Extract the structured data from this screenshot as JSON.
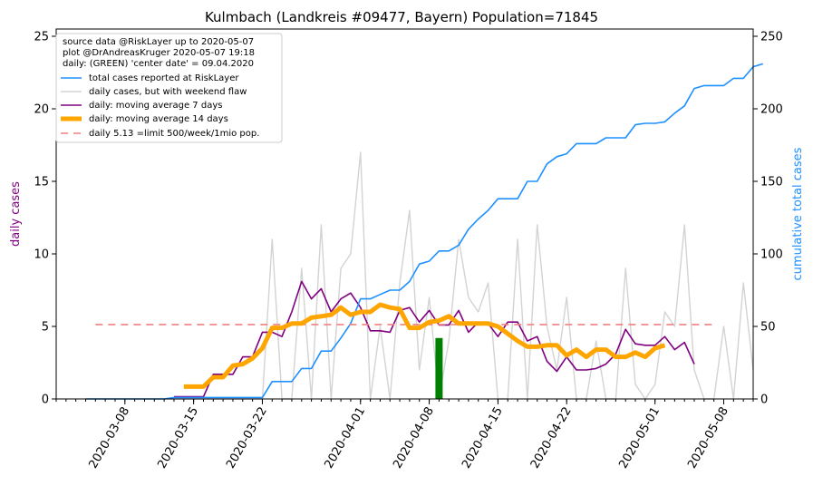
{
  "chart_data": {
    "type": "line",
    "title": "Kulmbach (Landkreis #09477, Bayern) Population=71845",
    "ylabel_left": "daily cases",
    "ylabel_right": "cumulative total cases",
    "ylim_left": [
      0,
      25.5
    ],
    "ylim_right": [
      0,
      255
    ],
    "yticks_left": [
      0,
      5,
      10,
      15,
      20,
      25
    ],
    "yticks_right": [
      0,
      50,
      100,
      150,
      200,
      250
    ],
    "x_start": "2020-03-01",
    "x_end": "2020-05-11",
    "xticks": [
      "2020-03-08",
      "2020-03-15",
      "2020-03-22",
      "2020-04-01",
      "2020-04-08",
      "2020-04-15",
      "2020-04-22",
      "2020-05-01",
      "2020-05-08"
    ],
    "legend_position": "top-left",
    "legend_header": [
      "source data @RiskLayer up to 2020-05-07",
      "plot @DrAndreasKruger 2020-05-07 19:18",
      "daily: (GREEN) 'center date' = 09.04.2020"
    ],
    "center_date_bar": {
      "date": "2020-04-09",
      "value": 4.2,
      "color": "#008000"
    },
    "limit_line": {
      "value": 5.13,
      "start": "2020-03-05",
      "end": "2020-05-07",
      "color": "#f08080"
    },
    "series": [
      {
        "name": "total cases reported at RiskLayer",
        "axis": "right",
        "color": "#1e90ff",
        "width": 1.6,
        "start": "2020-03-04",
        "values": [
          0,
          0,
          0,
          0,
          0,
          0,
          0,
          0,
          0,
          1,
          1,
          1,
          1,
          1,
          1,
          1,
          1,
          1,
          1,
          12,
          12,
          12,
          21,
          21,
          33,
          33,
          42,
          52,
          69,
          69,
          72,
          75,
          75,
          81,
          93,
          95,
          102,
          102,
          106,
          117,
          124,
          130,
          138,
          138,
          138,
          150,
          150,
          162,
          167,
          169,
          176,
          176,
          176,
          180,
          180,
          180,
          189,
          190,
          190,
          191,
          197,
          202,
          214,
          216,
          216,
          216,
          221,
          221,
          229,
          231
        ]
      },
      {
        "name": "daily cases, but with weekend flaw",
        "axis": "left",
        "color": "#d3d3d3",
        "width": 1.4,
        "start": "2020-03-04",
        "values": [
          0,
          0,
          0,
          0,
          0,
          0,
          0,
          0,
          0,
          0,
          0,
          0,
          0,
          0,
          0,
          0,
          0,
          0,
          0,
          11,
          0,
          0,
          9,
          0,
          12,
          0,
          9,
          10,
          17,
          0,
          5,
          0,
          8,
          13,
          2,
          7,
          0,
          4,
          11,
          7,
          6,
          8,
          0,
          0,
          11,
          0,
          12,
          5,
          2,
          7,
          0,
          0,
          4,
          0,
          0,
          9,
          1,
          0,
          1,
          6,
          5,
          12,
          2,
          0,
          0,
          5,
          0,
          8,
          2
        ]
      },
      {
        "name": "daily: moving average 7 days",
        "axis": "left",
        "color": "#800080",
        "width": 1.6,
        "start": "2020-03-13",
        "values": [
          0.15,
          0.15,
          0.15,
          0.15,
          1.7,
          1.7,
          1.7,
          2.9,
          2.9,
          4.6,
          4.6,
          4.3,
          6.0,
          8.1,
          6.9,
          7.6,
          6.0,
          6.9,
          7.3,
          6.3,
          4.7,
          4.7,
          4.6,
          6.1,
          6.3,
          5.3,
          6.1,
          5.1,
          5.1,
          6.1,
          4.6,
          5.3,
          5.2,
          4.3,
          5.3,
          5.3,
          4.0,
          4.3,
          2.6,
          1.9,
          2.9,
          2.0,
          2.0,
          2.1,
          2.4,
          3.1,
          4.8,
          3.8,
          3.7,
          3.7,
          4.3,
          3.4,
          3.9,
          2.4
        ]
      },
      {
        "name": "daily: moving average 14 days",
        "axis": "left",
        "color": "#ffa500",
        "width": 5,
        "start": "2020-03-14",
        "values": [
          0.85,
          0.85,
          0.85,
          1.5,
          1.5,
          2.3,
          2.4,
          2.8,
          3.5,
          4.9,
          4.9,
          5.2,
          5.2,
          5.6,
          5.7,
          5.8,
          6.3,
          5.8,
          6.0,
          6.0,
          6.5,
          6.3,
          6.2,
          4.9,
          4.9,
          5.3,
          5.4,
          5.7,
          5.2,
          5.2,
          5.2,
          5.2,
          5.0,
          4.5,
          4.0,
          3.6,
          3.6,
          3.7,
          3.7,
          3.0,
          3.4,
          2.9,
          3.4,
          3.4,
          2.9,
          2.9,
          3.2,
          2.9,
          3.5,
          3.7
        ]
      }
    ],
    "legend_limit_label": "daily 5.13 =limit 500/week/1mio pop."
  }
}
